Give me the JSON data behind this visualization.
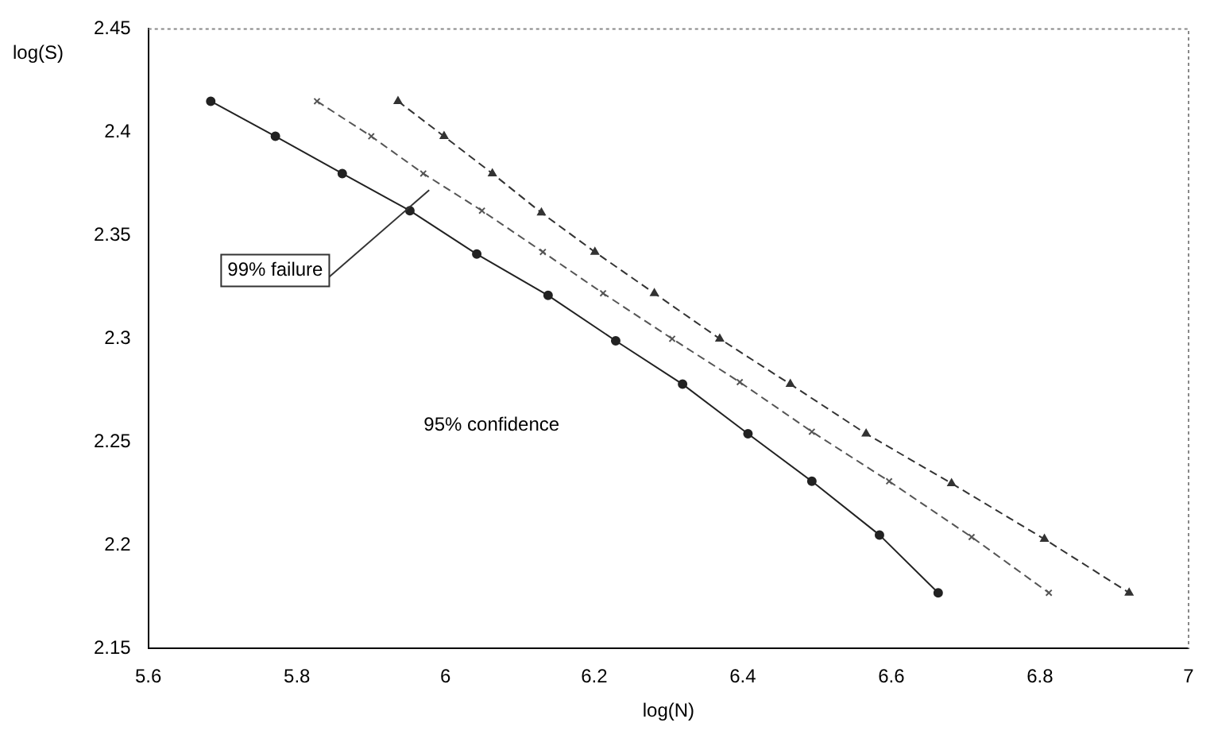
{
  "chart_data": {
    "type": "line",
    "xlabel": "log(N)",
    "ylabel": "log(S)",
    "xlim": [
      5.6,
      7
    ],
    "xticks": [
      5.6,
      5.8,
      6,
      6.2,
      6.4,
      6.6,
      6.8,
      7
    ],
    "ylim": [
      2.15,
      2.45
    ],
    "yticks": [
      2.15,
      2.2,
      2.25,
      2.3,
      2.35,
      2.4,
      2.45
    ],
    "grid": false,
    "legend": false,
    "series": [
      {
        "color": "#222222",
        "marker": "circle",
        "line_style": "solid",
        "x": [
          5.684,
          5.771,
          5.861,
          5.952,
          6.042,
          6.138,
          6.229,
          6.319,
          6.407,
          6.493,
          6.584,
          6.663
        ],
        "values": [
          2.415,
          2.398,
          2.38,
          2.362,
          2.341,
          2.321,
          2.299,
          2.278,
          2.254,
          2.231,
          2.205,
          2.177
        ]
      },
      {
        "color": "#555555",
        "marker": "cross",
        "line_style": "dashed",
        "x": [
          5.827,
          5.9,
          5.97,
          6.049,
          6.131,
          6.212,
          6.305,
          6.396,
          6.493,
          6.597,
          6.708,
          6.812
        ],
        "values": [
          2.415,
          2.398,
          2.38,
          2.362,
          2.342,
          2.322,
          2.3,
          2.279,
          2.255,
          2.231,
          2.204,
          2.177
        ]
      },
      {
        "color": "#333333",
        "marker": "triangle",
        "line_style": "dashed",
        "x": [
          5.936,
          5.998,
          6.063,
          6.129,
          6.201,
          6.281,
          6.369,
          6.464,
          6.566,
          6.681,
          6.806,
          6.92
        ],
        "values": [
          2.415,
          2.398,
          2.38,
          2.361,
          2.342,
          2.322,
          2.3,
          2.278,
          2.254,
          2.23,
          2.203,
          2.177
        ]
      }
    ],
    "annotations": [
      "99% failure",
      "95% confidence"
    ]
  }
}
